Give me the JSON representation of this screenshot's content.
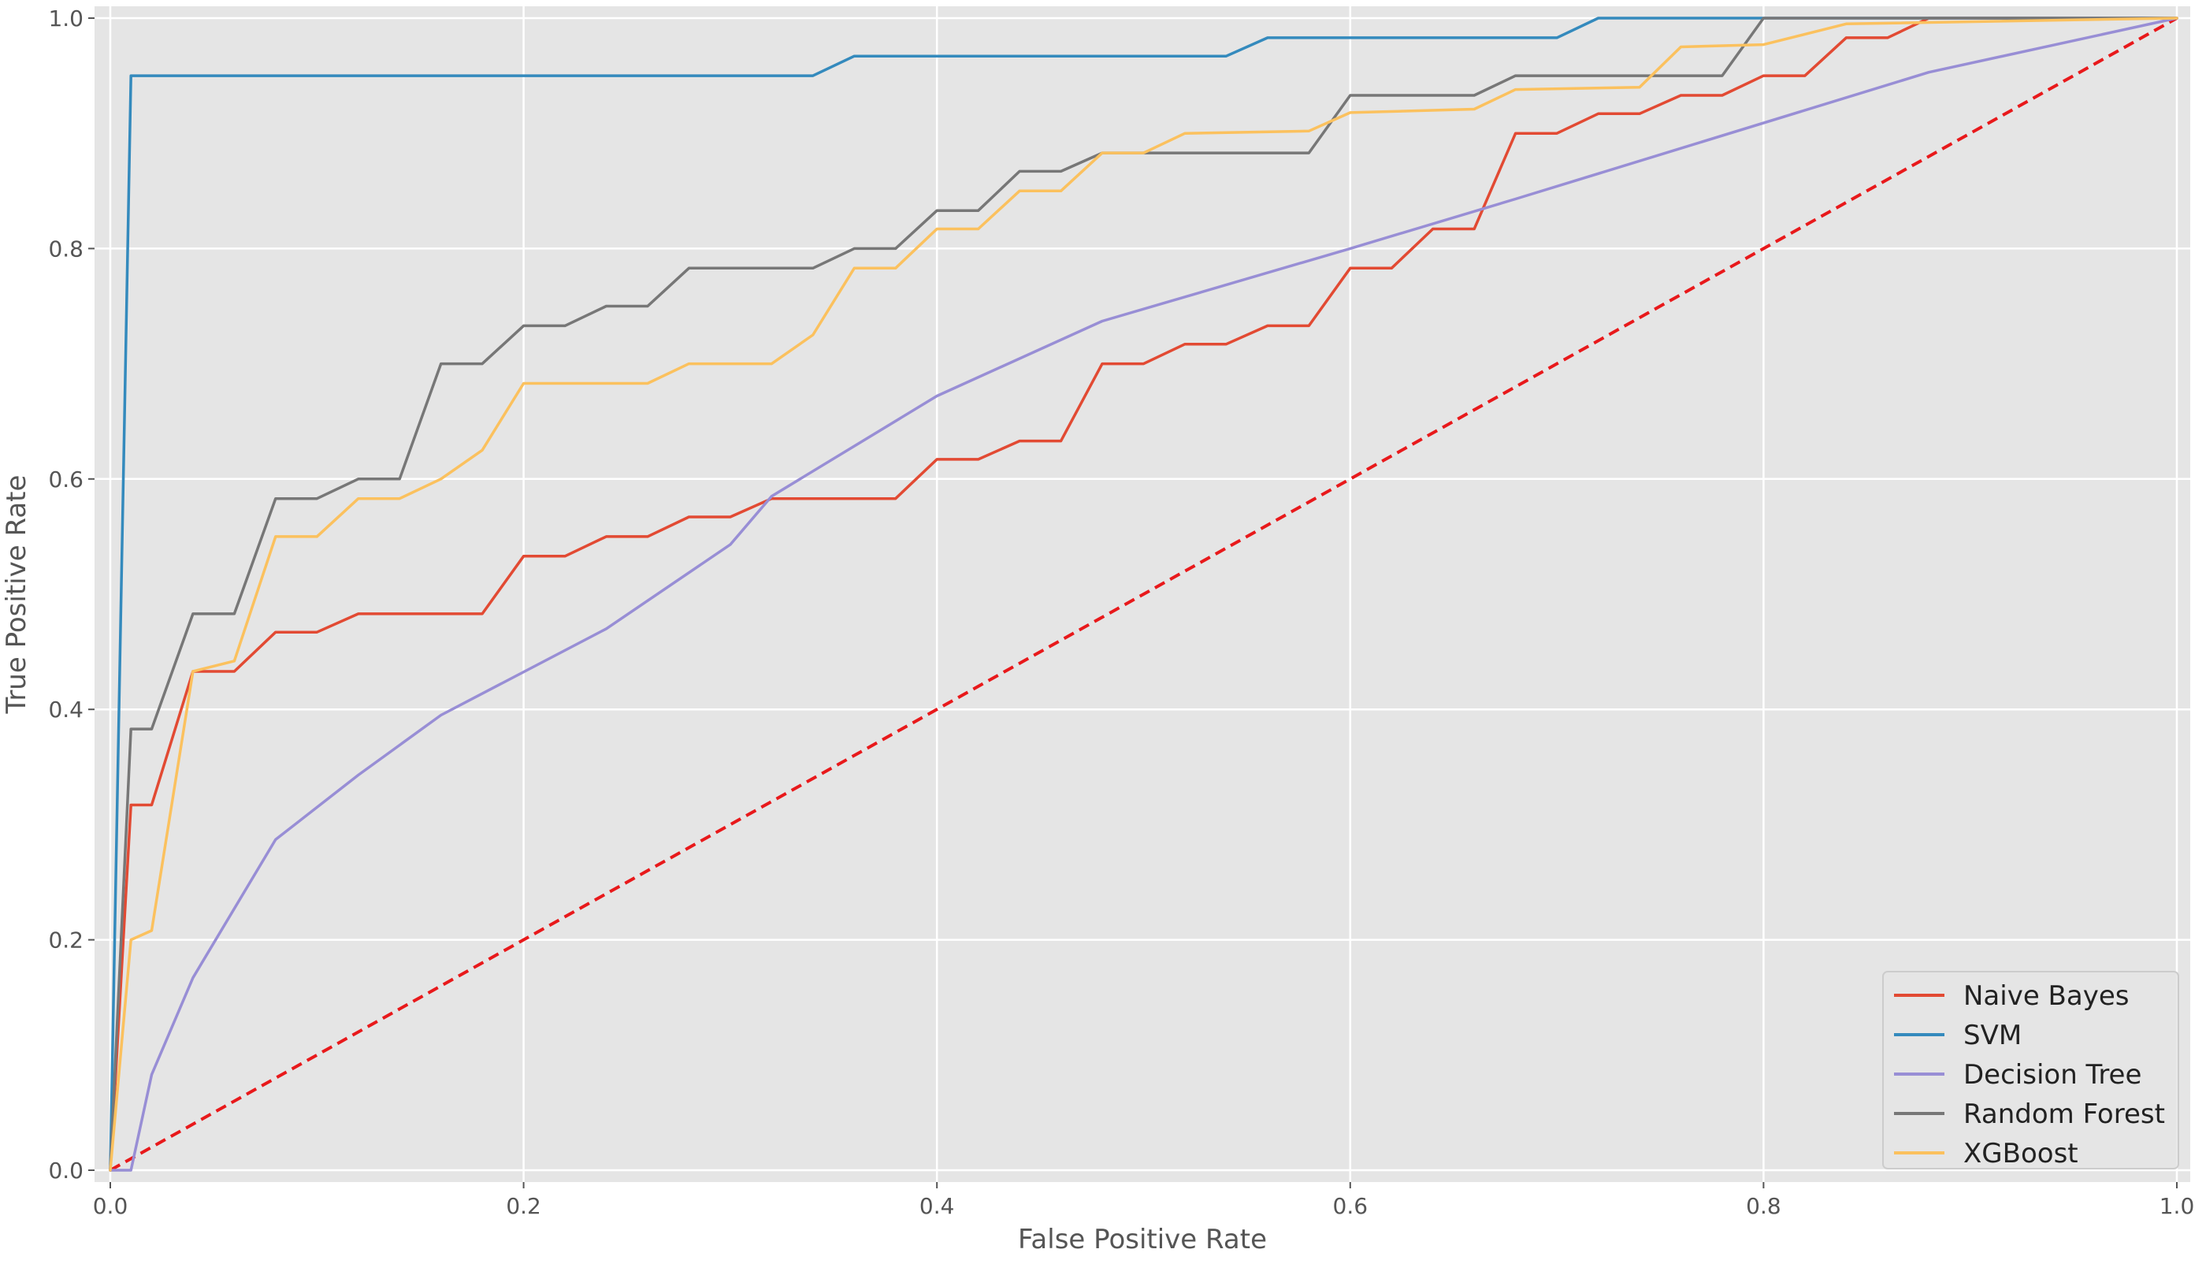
{
  "colors": {
    "background": "#ffffff",
    "plot_background": "#e5e5e5",
    "grid": "#ffffff",
    "chance_line": "#e8191b"
  },
  "chart_data": {
    "type": "line",
    "title": "",
    "xlabel": "False Positive Rate",
    "ylabel": "True Positive Rate",
    "xlim": [
      0,
      1
    ],
    "ylim": [
      0,
      1
    ],
    "x_ticks": [
      "0.0",
      "0.2",
      "0.4",
      "0.6",
      "0.8",
      "1.0"
    ],
    "y_ticks": [
      "0.0",
      "0.2",
      "0.4",
      "0.6",
      "0.8",
      "1.0"
    ],
    "x_tick_values": [
      0,
      0.2,
      0.4,
      0.6,
      0.8,
      1.0
    ],
    "y_tick_values": [
      0,
      0.2,
      0.4,
      0.6,
      0.8,
      1.0
    ],
    "grid": true,
    "legend_position": "bottom-right",
    "series": [
      {
        "name": "Naive Bayes",
        "color": "#e24a33",
        "points": [
          [
            0,
            0
          ],
          [
            0.01,
            0.317
          ],
          [
            0.02,
            0.317
          ],
          [
            0.04,
            0.433
          ],
          [
            0.06,
            0.433
          ],
          [
            0.08,
            0.467
          ],
          [
            0.1,
            0.467
          ],
          [
            0.12,
            0.483
          ],
          [
            0.18,
            0.483
          ],
          [
            0.2,
            0.533
          ],
          [
            0.22,
            0.533
          ],
          [
            0.24,
            0.55
          ],
          [
            0.26,
            0.55
          ],
          [
            0.28,
            0.567
          ],
          [
            0.3,
            0.567
          ],
          [
            0.32,
            0.583
          ],
          [
            0.38,
            0.583
          ],
          [
            0.4,
            0.617
          ],
          [
            0.42,
            0.617
          ],
          [
            0.44,
            0.633
          ],
          [
            0.46,
            0.633
          ],
          [
            0.48,
            0.7
          ],
          [
            0.5,
            0.7
          ],
          [
            0.52,
            0.717
          ],
          [
            0.54,
            0.717
          ],
          [
            0.56,
            0.733
          ],
          [
            0.58,
            0.733
          ],
          [
            0.6,
            0.783
          ],
          [
            0.62,
            0.783
          ],
          [
            0.64,
            0.817
          ],
          [
            0.66,
            0.817
          ],
          [
            0.68,
            0.9
          ],
          [
            0.7,
            0.9
          ],
          [
            0.72,
            0.917
          ],
          [
            0.74,
            0.917
          ],
          [
            0.76,
            0.933
          ],
          [
            0.78,
            0.933
          ],
          [
            0.8,
            0.95
          ],
          [
            0.82,
            0.95
          ],
          [
            0.84,
            0.983
          ],
          [
            0.86,
            0.983
          ],
          [
            0.88,
            1.0
          ],
          [
            1.0,
            1.0
          ]
        ]
      },
      {
        "name": "SVM",
        "color": "#348abd",
        "points": [
          [
            0,
            0
          ],
          [
            0.01,
            0.95
          ],
          [
            0.34,
            0.95
          ],
          [
            0.36,
            0.967
          ],
          [
            0.54,
            0.967
          ],
          [
            0.56,
            0.983
          ],
          [
            0.7,
            0.983
          ],
          [
            0.72,
            1.0
          ],
          [
            1.0,
            1.0
          ]
        ]
      },
      {
        "name": "Decision Tree",
        "color": "#988ed5",
        "points": [
          [
            0,
            0
          ],
          [
            0.01,
            0
          ],
          [
            0.02,
            0.083
          ],
          [
            0.04,
            0.167
          ],
          [
            0.08,
            0.287
          ],
          [
            0.12,
            0.343
          ],
          [
            0.16,
            0.395
          ],
          [
            0.24,
            0.47
          ],
          [
            0.3,
            0.543
          ],
          [
            0.32,
            0.585
          ],
          [
            0.4,
            0.672
          ],
          [
            0.48,
            0.737
          ],
          [
            0.6,
            0.8
          ],
          [
            0.68,
            0.843
          ],
          [
            0.76,
            0.887
          ],
          [
            0.88,
            0.953
          ],
          [
            1.0,
            1.0
          ]
        ]
      },
      {
        "name": "Random Forest",
        "color": "#777777",
        "points": [
          [
            0,
            0
          ],
          [
            0.01,
            0.383
          ],
          [
            0.02,
            0.383
          ],
          [
            0.04,
            0.483
          ],
          [
            0.06,
            0.483
          ],
          [
            0.08,
            0.583
          ],
          [
            0.1,
            0.583
          ],
          [
            0.12,
            0.6
          ],
          [
            0.14,
            0.6
          ],
          [
            0.16,
            0.7
          ],
          [
            0.18,
            0.7
          ],
          [
            0.2,
            0.733
          ],
          [
            0.22,
            0.733
          ],
          [
            0.24,
            0.75
          ],
          [
            0.26,
            0.75
          ],
          [
            0.28,
            0.783
          ],
          [
            0.34,
            0.783
          ],
          [
            0.36,
            0.8
          ],
          [
            0.38,
            0.8
          ],
          [
            0.4,
            0.833
          ],
          [
            0.42,
            0.833
          ],
          [
            0.44,
            0.867
          ],
          [
            0.46,
            0.867
          ],
          [
            0.48,
            0.883
          ],
          [
            0.58,
            0.883
          ],
          [
            0.6,
            0.933
          ],
          [
            0.66,
            0.933
          ],
          [
            0.68,
            0.95
          ],
          [
            0.78,
            0.95
          ],
          [
            0.8,
            1.0
          ],
          [
            1.0,
            1.0
          ]
        ]
      },
      {
        "name": "XGBoost",
        "color": "#fbc15e",
        "points": [
          [
            0,
            0
          ],
          [
            0.01,
            0.2
          ],
          [
            0.02,
            0.208
          ],
          [
            0.04,
            0.433
          ],
          [
            0.06,
            0.442
          ],
          [
            0.08,
            0.55
          ],
          [
            0.1,
            0.55
          ],
          [
            0.12,
            0.583
          ],
          [
            0.14,
            0.583
          ],
          [
            0.16,
            0.6
          ],
          [
            0.18,
            0.625
          ],
          [
            0.2,
            0.683
          ],
          [
            0.26,
            0.683
          ],
          [
            0.28,
            0.7
          ],
          [
            0.32,
            0.7
          ],
          [
            0.34,
            0.725
          ],
          [
            0.36,
            0.783
          ],
          [
            0.38,
            0.783
          ],
          [
            0.4,
            0.817
          ],
          [
            0.42,
            0.817
          ],
          [
            0.44,
            0.85
          ],
          [
            0.46,
            0.85
          ],
          [
            0.48,
            0.883
          ],
          [
            0.5,
            0.883
          ],
          [
            0.52,
            0.9
          ],
          [
            0.58,
            0.902
          ],
          [
            0.6,
            0.918
          ],
          [
            0.66,
            0.921
          ],
          [
            0.68,
            0.938
          ],
          [
            0.74,
            0.94
          ],
          [
            0.76,
            0.975
          ],
          [
            0.8,
            0.977
          ],
          [
            0.84,
            0.995
          ],
          [
            1.0,
            1.0
          ]
        ]
      }
    ],
    "reference_line": {
      "points": [
        [
          0,
          0
        ],
        [
          1,
          1
        ]
      ],
      "style": "dashed"
    }
  }
}
